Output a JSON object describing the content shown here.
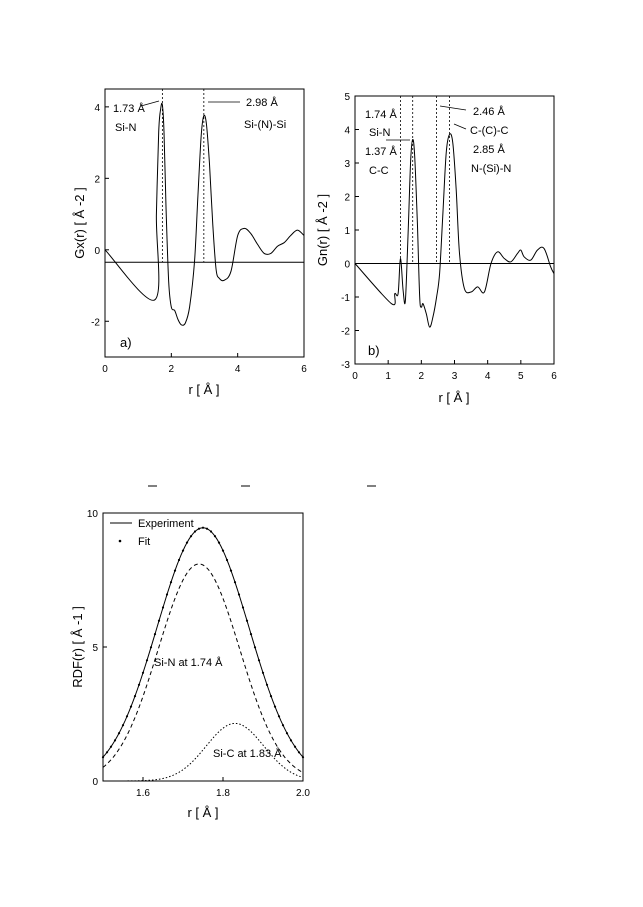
{
  "chart_data": [
    {
      "type": "line",
      "panel_label": "a)",
      "xlabel": "r [ Å ]",
      "ylabel": "Gx(r) [ Å -2 ]",
      "xlim": [
        0,
        6
      ],
      "ylim": [
        -3,
        4.5
      ],
      "xticks": [
        0,
        2,
        4,
        6
      ],
      "yticks": [
        -2,
        0,
        2,
        4
      ],
      "grid": false,
      "baseline_y": -0.35,
      "series": [
        {
          "x": [
            0,
            1.5,
            1.55,
            1.62,
            1.68,
            1.73,
            1.78,
            1.84,
            1.92,
            2.0,
            2.1,
            2.2,
            2.3,
            2.42,
            2.55,
            2.7,
            2.8,
            2.9,
            2.98,
            3.06,
            3.15,
            3.25,
            3.35,
            3.45,
            3.6,
            3.8,
            4.0,
            4.2,
            4.4,
            4.6,
            4.8,
            5.0,
            5.2,
            5.4,
            5.6,
            5.8,
            6.0
          ],
          "y": [
            0,
            -1.4,
            1.0,
            3.3,
            3.95,
            4.05,
            3.3,
            1.2,
            -0.9,
            -1.6,
            -1.7,
            -1.95,
            -2.1,
            -2.05,
            -1.6,
            -0.3,
            1.5,
            3.2,
            3.75,
            3.5,
            2.4,
            0.7,
            -0.55,
            -0.8,
            -0.85,
            -0.6,
            0.4,
            0.6,
            0.45,
            0.15,
            -0.1,
            -0.1,
            0.1,
            0.2,
            0.4,
            0.55,
            0.4
          ]
        }
      ],
      "markers": [
        {
          "x": 1.73,
          "label_top": "1.73 Å",
          "label_bottom": "Si-N"
        },
        {
          "x": 2.98,
          "label_top": "2.98 Å",
          "label_bottom": "Si-(N)-Si"
        }
      ]
    },
    {
      "type": "line",
      "panel_label": "b)",
      "xlabel": "r [ Å ]",
      "ylabel": "Gn(r) [ Å -2 ]",
      "xlim": [
        0,
        6
      ],
      "ylim": [
        -3,
        5
      ],
      "xticks": [
        0,
        1,
        2,
        3,
        4,
        5,
        6
      ],
      "yticks": [
        -3,
        -2,
        -1,
        0,
        1,
        2,
        3,
        4,
        5
      ],
      "grid": false,
      "baseline_y": 0,
      "series": [
        {
          "x": [
            0,
            1.1,
            1.2,
            1.3,
            1.37,
            1.45,
            1.52,
            1.6,
            1.68,
            1.74,
            1.8,
            1.88,
            1.95,
            2.0,
            2.05,
            2.15,
            2.25,
            2.35,
            2.46,
            2.55,
            2.65,
            2.75,
            2.85,
            2.95,
            3.05,
            3.15,
            3.3,
            3.5,
            3.7,
            3.9,
            4.1,
            4.3,
            4.5,
            4.7,
            4.9,
            5.0,
            5.1,
            5.3,
            5.5,
            5.7,
            5.9,
            6.0
          ],
          "y": [
            0,
            -1.2,
            -0.9,
            -0.9,
            0.15,
            -0.8,
            -1.1,
            0.9,
            3.1,
            3.7,
            3.2,
            1.2,
            -1.0,
            -1.3,
            -1.2,
            -1.5,
            -1.9,
            -1.6,
            -1.0,
            -0.3,
            1.5,
            3.3,
            3.85,
            3.6,
            2.2,
            0.3,
            -0.75,
            -0.85,
            -0.7,
            -0.85,
            0.0,
            0.35,
            0.15,
            0.05,
            0.3,
            0.4,
            0.2,
            0.1,
            0.4,
            0.45,
            -0.1,
            -0.3
          ]
        }
      ],
      "markers": [
        {
          "x": 1.37
        },
        {
          "x": 1.74
        },
        {
          "x": 2.46
        },
        {
          "x": 2.85
        }
      ],
      "annotations": [
        "1.74 Å",
        "Si-N",
        "1.37 Å",
        "C-C",
        "2.46 Å",
        "C-(C)-C",
        "2.85 Å",
        "N-(Si)-N"
      ]
    },
    {
      "type": "line",
      "xlabel": "r [ Å ]",
      "ylabel": "RDF(r) [ Å -1 ]",
      "xlim": [
        1.5,
        2.0
      ],
      "ylim": [
        0,
        10
      ],
      "xticks": [
        1.6,
        1.8,
        2.0
      ],
      "yticks": [
        0,
        5,
        10
      ],
      "grid": false,
      "legend": "top-left",
      "series": [
        {
          "name": "Experiment",
          "style": "solid",
          "shape": "gaussian",
          "center": 1.75,
          "amplitude": 9.45,
          "sigma": 0.115
        },
        {
          "name": "Fit",
          "style": "points",
          "shape": "gaussian",
          "center": 1.75,
          "amplitude": 9.45,
          "sigma": 0.115
        },
        {
          "style": "dashed",
          "shape": "gaussian",
          "center": 1.74,
          "amplitude": 8.1,
          "sigma": 0.102
        },
        {
          "style": "dotted",
          "shape": "gaussian",
          "center": 1.83,
          "amplitude": 2.15,
          "sigma": 0.072
        }
      ],
      "annotations": [
        "Si-N at 1.74 Å",
        "Si-C at 1.83 Å"
      ]
    }
  ]
}
